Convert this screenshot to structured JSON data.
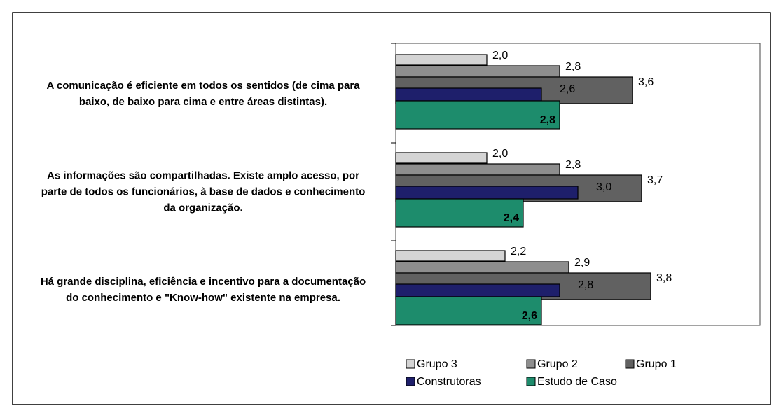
{
  "chart_data": {
    "type": "bar",
    "orientation": "horizontal",
    "categories": [
      "A comunicação é eficiente em todos os sentidos (de cima para baixo, de baixo para cima e entre áreas distintas).",
      "As informações são compartilhadas. Existe amplo acesso, por parte de todos os funcionários, à base de dados e conhecimento da organização.",
      "Há grande disciplina, eficiência e incentivo para a documentação do conhecimento e \"Know-how\" existente na empresa."
    ],
    "xlim": [
      1,
      5
    ],
    "series": [
      {
        "name": "Grupo 3",
        "color": "#d4d4d4",
        "values": [
          2.0,
          2.0,
          2.2
        ],
        "value_labels": [
          "2,0",
          "2,0",
          "2,2"
        ]
      },
      {
        "name": "Grupo 2",
        "color": "#8e8e8e",
        "values": [
          2.8,
          2.8,
          2.9
        ],
        "value_labels": [
          "2,8",
          "2,8",
          "2,9"
        ]
      },
      {
        "name": "Grupo 1",
        "color": "#616161",
        "values": [
          3.6,
          3.7,
          3.8
        ],
        "value_labels": [
          "3,6",
          "3,7",
          "3,8"
        ]
      },
      {
        "name": "Construtoras",
        "color": "#1e1f6b",
        "values": [
          2.6,
          3.0,
          2.8
        ],
        "value_labels": [
          "2,6",
          "3,0",
          "2,8"
        ]
      },
      {
        "name": "Estudo de Caso",
        "color": "#1d8c6c",
        "values": [
          2.8,
          2.4,
          2.6
        ],
        "value_labels": [
          "2,8",
          "2,4",
          "2,6"
        ]
      }
    ]
  }
}
